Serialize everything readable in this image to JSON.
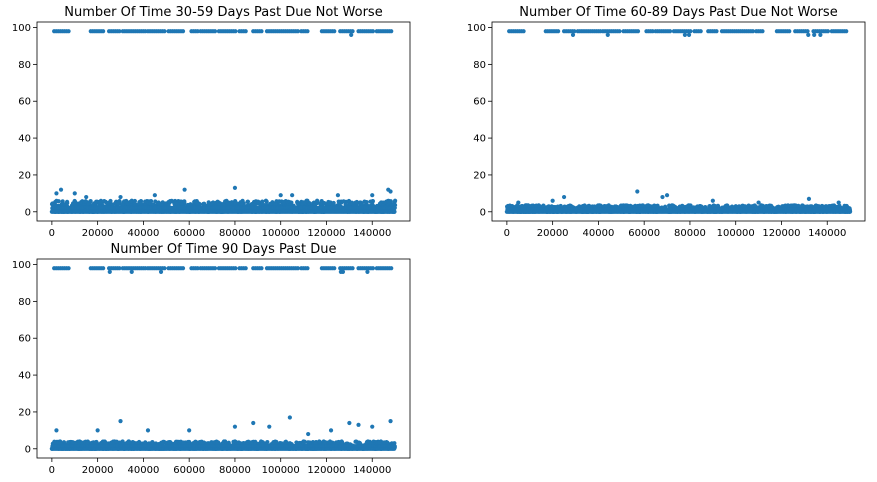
{
  "chart_data": [
    {
      "type": "scatter",
      "title": "Number Of Time 30-59 Days Past Due Not Worse",
      "xlabel": "",
      "ylabel": "",
      "xlim": [
        -6500,
        156500
      ],
      "ylim": [
        -5,
        103
      ],
      "xticks": [
        0,
        20000,
        40000,
        60000,
        80000,
        100000,
        120000,
        140000
      ],
      "xtick_labels": [
        "0",
        "20000",
        "40000",
        "60000",
        "80000",
        "100000",
        "120000",
        "140000"
      ],
      "yticks": [
        0,
        20,
        40,
        60,
        80,
        100
      ],
      "ytick_labels": [
        "0",
        "20",
        "40",
        "60",
        "80",
        "100"
      ],
      "grid": false,
      "color": "#1f77b4",
      "band_max": 6,
      "high_values": [
        98,
        96
      ],
      "high_segments": [
        [
          1000,
          8000
        ],
        [
          17000,
          23000
        ],
        [
          25000,
          30000
        ],
        [
          31000,
          41000
        ],
        [
          42000,
          50000
        ],
        [
          51000,
          58000
        ],
        [
          61000,
          64000
        ],
        [
          65000,
          72000
        ],
        [
          73000,
          81000
        ],
        [
          82000,
          85000
        ],
        [
          88000,
          92000
        ],
        [
          94000,
          108000
        ],
        [
          109000,
          112000
        ],
        [
          118000,
          124000
        ],
        [
          126000,
          132000
        ],
        [
          134000,
          141000
        ],
        [
          142000,
          149000
        ]
      ],
      "outliers": [
        [
          2000,
          10
        ],
        [
          4000,
          12
        ],
        [
          10000,
          10
        ],
        [
          15000,
          8
        ],
        [
          30000,
          8
        ],
        [
          45000,
          9
        ],
        [
          58000,
          12
        ],
        [
          80000,
          13
        ],
        [
          100000,
          9
        ],
        [
          105000,
          9
        ],
        [
          125000,
          9
        ],
        [
          140000,
          9
        ],
        [
          148000,
          11
        ],
        [
          147000,
          12
        ]
      ]
    },
    {
      "type": "scatter",
      "title": "Number Of Time 60-89 Days Past Due Not Worse",
      "xlabel": "",
      "ylabel": "",
      "xlim": [
        -6500,
        156500
      ],
      "ylim": [
        -5,
        103
      ],
      "xticks": [
        0,
        20000,
        40000,
        60000,
        80000,
        100000,
        120000,
        140000
      ],
      "xtick_labels": [
        "0",
        "20000",
        "40000",
        "60000",
        "80000",
        "100000",
        "120000",
        "140000"
      ],
      "yticks": [
        0,
        20,
        40,
        60,
        80,
        100
      ],
      "ytick_labels": [
        "0",
        "20",
        "40",
        "60",
        "80",
        "100"
      ],
      "grid": false,
      "color": "#1f77b4",
      "band_max": 3.5,
      "high_values": [
        98,
        96
      ],
      "high_segments": [
        [
          1000,
          8000
        ],
        [
          17000,
          23000
        ],
        [
          25000,
          30000
        ],
        [
          31000,
          41000
        ],
        [
          42000,
          50000
        ],
        [
          51000,
          58000
        ],
        [
          61000,
          64000
        ],
        [
          65000,
          72000
        ],
        [
          73000,
          81000
        ],
        [
          82000,
          85000
        ],
        [
          88000,
          92000
        ],
        [
          94000,
          108000
        ],
        [
          109000,
          112000
        ],
        [
          118000,
          124000
        ],
        [
          126000,
          132000
        ],
        [
          134000,
          141000
        ],
        [
          142000,
          149000
        ]
      ],
      "outliers": [
        [
          5000,
          5
        ],
        [
          20000,
          6
        ],
        [
          25000,
          8
        ],
        [
          57000,
          11
        ],
        [
          68000,
          8
        ],
        [
          70000,
          9
        ],
        [
          90000,
          6
        ],
        [
          110000,
          5
        ],
        [
          132000,
          7
        ],
        [
          145000,
          5
        ]
      ]
    },
    {
      "type": "scatter",
      "title": "Number Of Time 90 Days Past Due",
      "xlabel": "",
      "ylabel": "",
      "xlim": [
        -6500,
        156500
      ],
      "ylim": [
        -5,
        103
      ],
      "xticks": [
        0,
        20000,
        40000,
        60000,
        80000,
        100000,
        120000,
        140000
      ],
      "xtick_labels": [
        "0",
        "20000",
        "40000",
        "60000",
        "80000",
        "100000",
        "120000",
        "140000"
      ],
      "yticks": [
        0,
        20,
        40,
        60,
        80,
        100
      ],
      "ytick_labels": [
        "0",
        "20",
        "40",
        "60",
        "80",
        "100"
      ],
      "grid": false,
      "color": "#1f77b4",
      "band_max": 4,
      "high_values": [
        98,
        96
      ],
      "high_segments": [
        [
          1000,
          8000
        ],
        [
          17000,
          23000
        ],
        [
          25000,
          30000
        ],
        [
          31000,
          41000
        ],
        [
          42000,
          50000
        ],
        [
          51000,
          58000
        ],
        [
          61000,
          64000
        ],
        [
          65000,
          72000
        ],
        [
          73000,
          81000
        ],
        [
          82000,
          85000
        ],
        [
          88000,
          92000
        ],
        [
          94000,
          108000
        ],
        [
          109000,
          112000
        ],
        [
          118000,
          124000
        ],
        [
          126000,
          132000
        ],
        [
          134000,
          141000
        ],
        [
          142000,
          149000
        ]
      ],
      "outliers": [
        [
          2000,
          10
        ],
        [
          20000,
          10
        ],
        [
          30000,
          15
        ],
        [
          42000,
          10
        ],
        [
          60000,
          10
        ],
        [
          80000,
          12
        ],
        [
          88000,
          14
        ],
        [
          95000,
          12
        ],
        [
          104000,
          17
        ],
        [
          112000,
          8
        ],
        [
          122000,
          10
        ],
        [
          130000,
          14
        ],
        [
          134000,
          13
        ],
        [
          140000,
          12
        ],
        [
          148000,
          15
        ]
      ]
    }
  ]
}
